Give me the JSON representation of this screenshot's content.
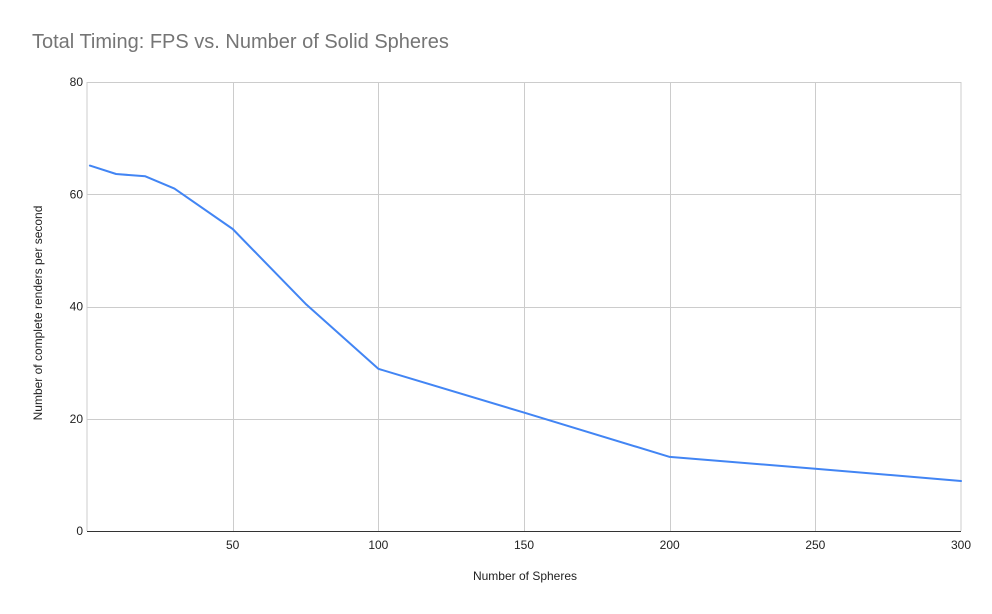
{
  "chart_data": {
    "type": "line",
    "title": "Total Timing: FPS vs. Number of Solid Spheres",
    "xlabel": "Number of Spheres",
    "ylabel": "Number of complete renders per second",
    "xlim": [
      0,
      300
    ],
    "ylim": [
      0,
      80
    ],
    "x_ticks": [
      50,
      100,
      150,
      200,
      250,
      300
    ],
    "y_ticks": [
      0,
      20,
      40,
      60,
      80
    ],
    "grid": true,
    "legend": "none",
    "series": [
      {
        "color": "#4285f4",
        "x": [
          1,
          10,
          20,
          30,
          50,
          75,
          100,
          150,
          200,
          250,
          300
        ],
        "y": [
          65.1,
          63.6,
          63.2,
          61,
          53.8,
          40.5,
          28.9,
          21.1,
          13.2,
          11.1,
          8.9
        ]
      }
    ]
  }
}
